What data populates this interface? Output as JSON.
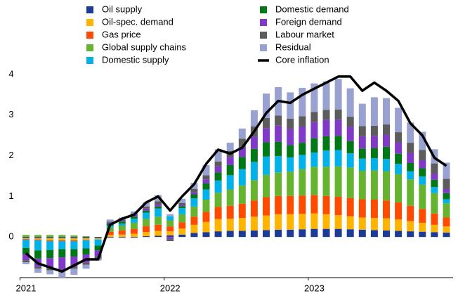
{
  "chart_data": {
    "type": "bar",
    "stacked": true,
    "categories": [
      "2021",
      null,
      null,
      null,
      null,
      null,
      null,
      null,
      null,
      null,
      null,
      null,
      "2022",
      null,
      null,
      null,
      null,
      null,
      null,
      null,
      null,
      null,
      null,
      null,
      "2023",
      null,
      null,
      null,
      null,
      null,
      null,
      null,
      null,
      null,
      null,
      null
    ],
    "ylim": [
      -1,
      4
    ],
    "yticks": [
      0,
      1,
      2,
      3,
      4
    ],
    "series": [
      {
        "name": "Oil supply",
        "color": "#1b3b98",
        "values": [
          -0.03,
          -0.03,
          -0.03,
          -0.03,
          -0.03,
          -0.03,
          -0.03,
          -0.02,
          -0.02,
          -0.02,
          0.02,
          0.03,
          0.04,
          0.06,
          0.1,
          0.12,
          0.14,
          0.15,
          0.15,
          0.16,
          0.17,
          0.18,
          0.18,
          0.19,
          0.2,
          0.2,
          0.2,
          0.19,
          0.18,
          0.17,
          0.16,
          0.15,
          0.14,
          0.13,
          0.12,
          0.11
        ]
      },
      {
        "name": "Oil-spec. demand",
        "color": "#ffb400",
        "values": [
          -0.02,
          -0.03,
          -0.05,
          -0.05,
          -0.05,
          -0.04,
          -0.03,
          0.05,
          0.06,
          0.08,
          0.1,
          0.12,
          0.1,
          0.15,
          0.2,
          0.25,
          0.3,
          0.3,
          0.32,
          0.34,
          0.36,
          0.38,
          0.38,
          0.38,
          0.38,
          0.36,
          0.34,
          0.32,
          0.3,
          0.3,
          0.3,
          0.28,
          0.25,
          0.22,
          0.18,
          0.15
        ]
      },
      {
        "name": "Gas price",
        "color": "#ff4b00",
        "values": [
          -0.02,
          -0.02,
          -0.02,
          -0.02,
          -0.02,
          -0.01,
          0.0,
          0.08,
          0.1,
          0.12,
          0.15,
          0.15,
          0.12,
          0.15,
          0.2,
          0.25,
          0.3,
          0.32,
          0.35,
          0.4,
          0.45,
          0.45,
          0.45,
          0.45,
          0.45,
          0.45,
          0.45,
          0.45,
          0.45,
          0.45,
          0.44,
          0.42,
          0.38,
          0.34,
          0.28,
          0.22
        ]
      },
      {
        "name": "Global supply chains",
        "color": "#65b32e",
        "values": [
          0.05,
          0.05,
          0.05,
          0.05,
          0.04,
          0.02,
          0.0,
          0.1,
          0.12,
          0.15,
          0.18,
          0.2,
          0.15,
          0.2,
          0.25,
          0.3,
          0.35,
          0.4,
          0.45,
          0.5,
          0.55,
          0.58,
          0.6,
          0.65,
          0.7,
          0.72,
          0.75,
          0.75,
          0.7,
          0.72,
          0.72,
          0.7,
          0.65,
          0.6,
          0.5,
          0.35
        ]
      },
      {
        "name": "Domestic supply",
        "color": "#00b1ea",
        "values": [
          -0.2,
          -0.25,
          -0.22,
          -0.2,
          -0.2,
          -0.2,
          -0.15,
          0.05,
          0.05,
          0.1,
          0.15,
          0.2,
          0.1,
          0.15,
          0.2,
          0.25,
          0.3,
          0.35,
          0.4,
          0.45,
          0.45,
          0.4,
          0.35,
          0.35,
          0.35,
          0.4,
          0.4,
          0.35,
          0.3,
          0.3,
          0.3,
          0.25,
          0.2,
          0.2,
          0.15,
          0.1
        ]
      },
      {
        "name": "Domestic demand",
        "color": "#007816",
        "values": [
          -0.15,
          -0.2,
          -0.2,
          -0.2,
          -0.18,
          -0.15,
          -0.12,
          0.05,
          0.05,
          0.05,
          0.05,
          0.05,
          0.0,
          0.05,
          0.1,
          0.15,
          0.2,
          0.25,
          0.3,
          0.32,
          0.35,
          0.35,
          0.3,
          0.3,
          0.35,
          0.35,
          0.35,
          0.3,
          0.25,
          0.25,
          0.3,
          0.25,
          0.2,
          0.2,
          0.18,
          0.15
        ]
      },
      {
        "name": "Foreign demand",
        "color": "#8139c8",
        "values": [
          -0.15,
          -0.2,
          -0.25,
          -0.3,
          -0.25,
          -0.2,
          -0.15,
          0.03,
          0.03,
          0.05,
          0.05,
          0.05,
          -0.05,
          0.03,
          0.05,
          0.1,
          0.15,
          0.2,
          0.25,
          0.3,
          0.35,
          0.4,
          0.4,
          0.4,
          0.4,
          0.4,
          0.4,
          0.35,
          0.3,
          0.3,
          0.3,
          0.28,
          0.25,
          0.2,
          0.15,
          0.1
        ]
      },
      {
        "name": "Labour market",
        "color": "#5c5c5c",
        "values": [
          -0.05,
          -0.05,
          -0.05,
          -0.05,
          -0.05,
          -0.05,
          -0.05,
          0.02,
          0.02,
          0.03,
          0.05,
          0.08,
          -0.05,
          0.05,
          0.08,
          0.1,
          0.12,
          0.15,
          0.2,
          0.25,
          0.25,
          0.25,
          0.25,
          0.25,
          0.25,
          0.25,
          0.25,
          0.25,
          0.25,
          0.25,
          0.25,
          0.25,
          0.25,
          0.25,
          0.25,
          0.25
        ]
      },
      {
        "name": "Residual",
        "color": "#98a1d0",
        "values": [
          -0.05,
          -0.1,
          -0.1,
          -0.15,
          -0.15,
          -0.1,
          -0.05,
          0.05,
          0.05,
          0.05,
          0.1,
          0.15,
          0.05,
          0.1,
          0.15,
          0.25,
          0.3,
          0.2,
          0.25,
          0.4,
          0.6,
          0.7,
          0.65,
          0.7,
          0.7,
          0.7,
          0.75,
          0.7,
          0.55,
          0.7,
          0.65,
          0.6,
          0.5,
          0.45,
          0.35,
          0.4
        ]
      },
      {
        "name": "Core inflation",
        "type": "line",
        "color": "#000000",
        "values": [
          -0.4,
          -0.65,
          -0.75,
          -0.85,
          -0.7,
          -0.55,
          -0.55,
          0.3,
          0.45,
          0.55,
          0.85,
          1.0,
          0.65,
          1.0,
          1.3,
          1.8,
          2.15,
          2.05,
          2.2,
          2.6,
          3.05,
          3.35,
          3.3,
          3.5,
          3.65,
          3.8,
          3.95,
          3.95,
          3.6,
          3.8,
          3.6,
          3.35,
          2.8,
          2.5,
          1.95,
          1.75
        ]
      }
    ]
  }
}
